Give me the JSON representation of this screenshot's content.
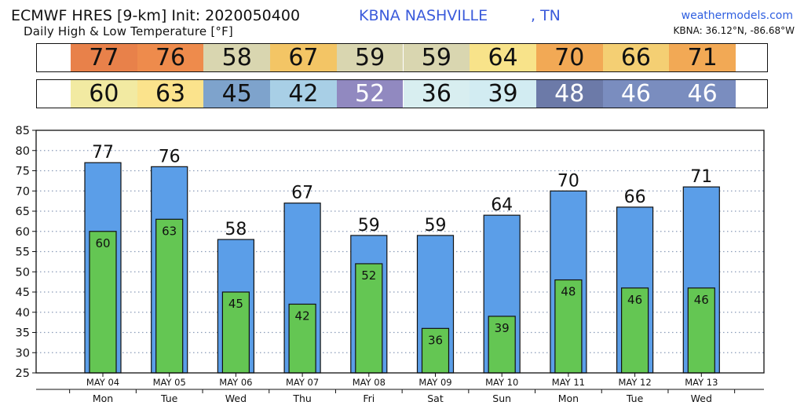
{
  "header": {
    "title": "ECMWF HRES [9-km] Init: 2020050400",
    "subtitle": "Daily High & Low Temperature [°F]",
    "station": "KBNA NASHVILLE",
    "state": ", TN",
    "site": "weathermodels.com",
    "coords": "KBNA: 36.12°N, -86.68°W"
  },
  "strips": {
    "high": [
      {
        "value": "77",
        "bg": "#e8814a",
        "fg": "#111111"
      },
      {
        "value": "76",
        "bg": "#ee8b4c",
        "fg": "#111111"
      },
      {
        "value": "58",
        "bg": "#d9d6b0",
        "fg": "#111111"
      },
      {
        "value": "67",
        "bg": "#f3c565",
        "fg": "#111111"
      },
      {
        "value": "59",
        "bg": "#d9d6b0",
        "fg": "#111111"
      },
      {
        "value": "59",
        "bg": "#d9d6b0",
        "fg": "#111111"
      },
      {
        "value": "64",
        "bg": "#f8e38a",
        "fg": "#111111"
      },
      {
        "value": "70",
        "bg": "#f2a955",
        "fg": "#111111"
      },
      {
        "value": "66",
        "bg": "#f4cf73",
        "fg": "#111111"
      },
      {
        "value": "71",
        "bg": "#f2a955",
        "fg": "#111111"
      }
    ],
    "low": [
      {
        "value": "60",
        "bg": "#f2eaa2",
        "fg": "#111111"
      },
      {
        "value": "63",
        "bg": "#fbe38c",
        "fg": "#111111"
      },
      {
        "value": "45",
        "bg": "#7ea3cc",
        "fg": "#111111"
      },
      {
        "value": "42",
        "bg": "#a8cfe6",
        "fg": "#111111"
      },
      {
        "value": "52",
        "bg": "#9189c0",
        "fg": "#ffffff"
      },
      {
        "value": "36",
        "bg": "#d8eef0",
        "fg": "#111111"
      },
      {
        "value": "39",
        "bg": "#d2ecf2",
        "fg": "#111111"
      },
      {
        "value": "48",
        "bg": "#6c7aa8",
        "fg": "#ffffff"
      },
      {
        "value": "46",
        "bg": "#7a8dbf",
        "fg": "#ffffff"
      },
      {
        "value": "46",
        "bg": "#7a8dbf",
        "fg": "#ffffff"
      }
    ]
  },
  "chart_data": {
    "type": "bar",
    "categories": [
      "MAY 04",
      "MAY 05",
      "MAY 06",
      "MAY 07",
      "MAY 08",
      "MAY 09",
      "MAY 10",
      "MAY 11",
      "MAY 12",
      "MAY 13"
    ],
    "weekdays": [
      "Mon",
      "Tue",
      "Wed",
      "Thu",
      "Fri",
      "Sat",
      "Sun",
      "Mon",
      "Tue",
      "Wed"
    ],
    "series": [
      {
        "values": [
          77,
          76,
          58,
          67,
          59,
          59,
          64,
          70,
          66,
          71
        ],
        "color": "#5b9ee8"
      },
      {
        "values": [
          60,
          63,
          45,
          42,
          52,
          36,
          39,
          48,
          46,
          46
        ],
        "color": "#64c653"
      }
    ],
    "ylim": [
      25,
      85
    ],
    "yticks": [
      25,
      30,
      35,
      40,
      45,
      50,
      55,
      60,
      65,
      70,
      75,
      80,
      85
    ],
    "grid": true,
    "grid_color": "#8a9bb8"
  }
}
